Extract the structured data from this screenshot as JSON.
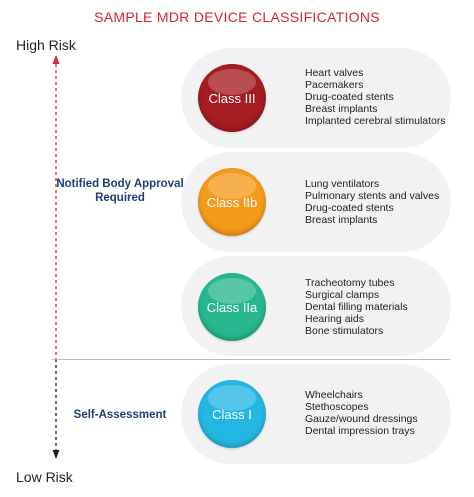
{
  "title": "SAMPLE MDR DEVICE CLASSIFICATIONS",
  "axis": {
    "top_label": "High Risk",
    "bottom_label": "Low Risk",
    "top_arrow_color": "#d7262f",
    "bottom_arrow_color": "#222222"
  },
  "sections": {
    "notified_body": "Notified Body Approval Required",
    "self_assessment": "Self-Assessment"
  },
  "classes": [
    {
      "label": "Class III",
      "color": "#a51c22",
      "examples": [
        "Heart valves",
        "Pacemakers",
        "Drug-coated stents",
        "Breast implants",
        "Implanted cerebral stimulators"
      ]
    },
    {
      "label": "Class IIb",
      "color": "#f59a1d",
      "examples": [
        "Lung ventilators",
        "Pulmonary stents and valves",
        "Drug-coated stents",
        "Breast implants"
      ]
    },
    {
      "label": "Class IIa",
      "color": "#27b78e",
      "examples": [
        "Tracheotomy tubes",
        "Surgical clamps",
        "Dental filling materials",
        "Hearing aids",
        "Bone stimulators"
      ]
    },
    {
      "label": "Class I",
      "color": "#25b7e3",
      "examples": [
        "Wheelchairs",
        "Stethoscopes",
        "Gauze/wound dressings",
        "Dental impression trays"
      ]
    }
  ]
}
